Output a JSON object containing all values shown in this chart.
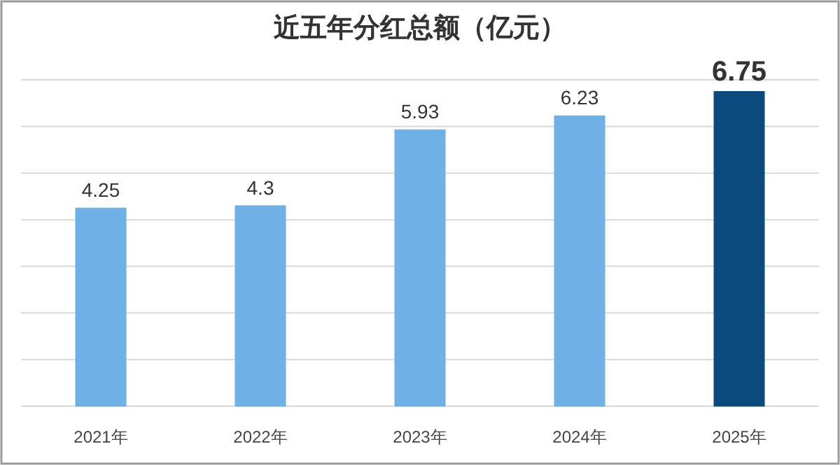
{
  "chart_data": {
    "type": "bar",
    "title": "近五年分红总额（亿元）",
    "categories": [
      "2021年",
      "2022年",
      "2023年",
      "2024年",
      "2025年"
    ],
    "values": [
      4.25,
      4.3,
      5.93,
      6.23,
      6.75
    ],
    "colors": [
      "#6fb0e6",
      "#6fb0e6",
      "#6fb0e6",
      "#6fb0e6",
      "#0b4a7c"
    ],
    "ylim": [
      0,
      7
    ],
    "yticks": [
      {
        "value": 0,
        "label": null
      },
      {
        "value": 1,
        "label": null
      },
      {
        "value": 2,
        "label": null
      },
      {
        "value": 3,
        "label": null
      },
      {
        "value": 4,
        "label": null
      },
      {
        "value": 5,
        "label": null
      },
      {
        "value": 6,
        "label": null
      },
      {
        "value": 7,
        "label": null
      }
    ],
    "grid": "y",
    "tick_labels": "x",
    "data_labels": true
  }
}
